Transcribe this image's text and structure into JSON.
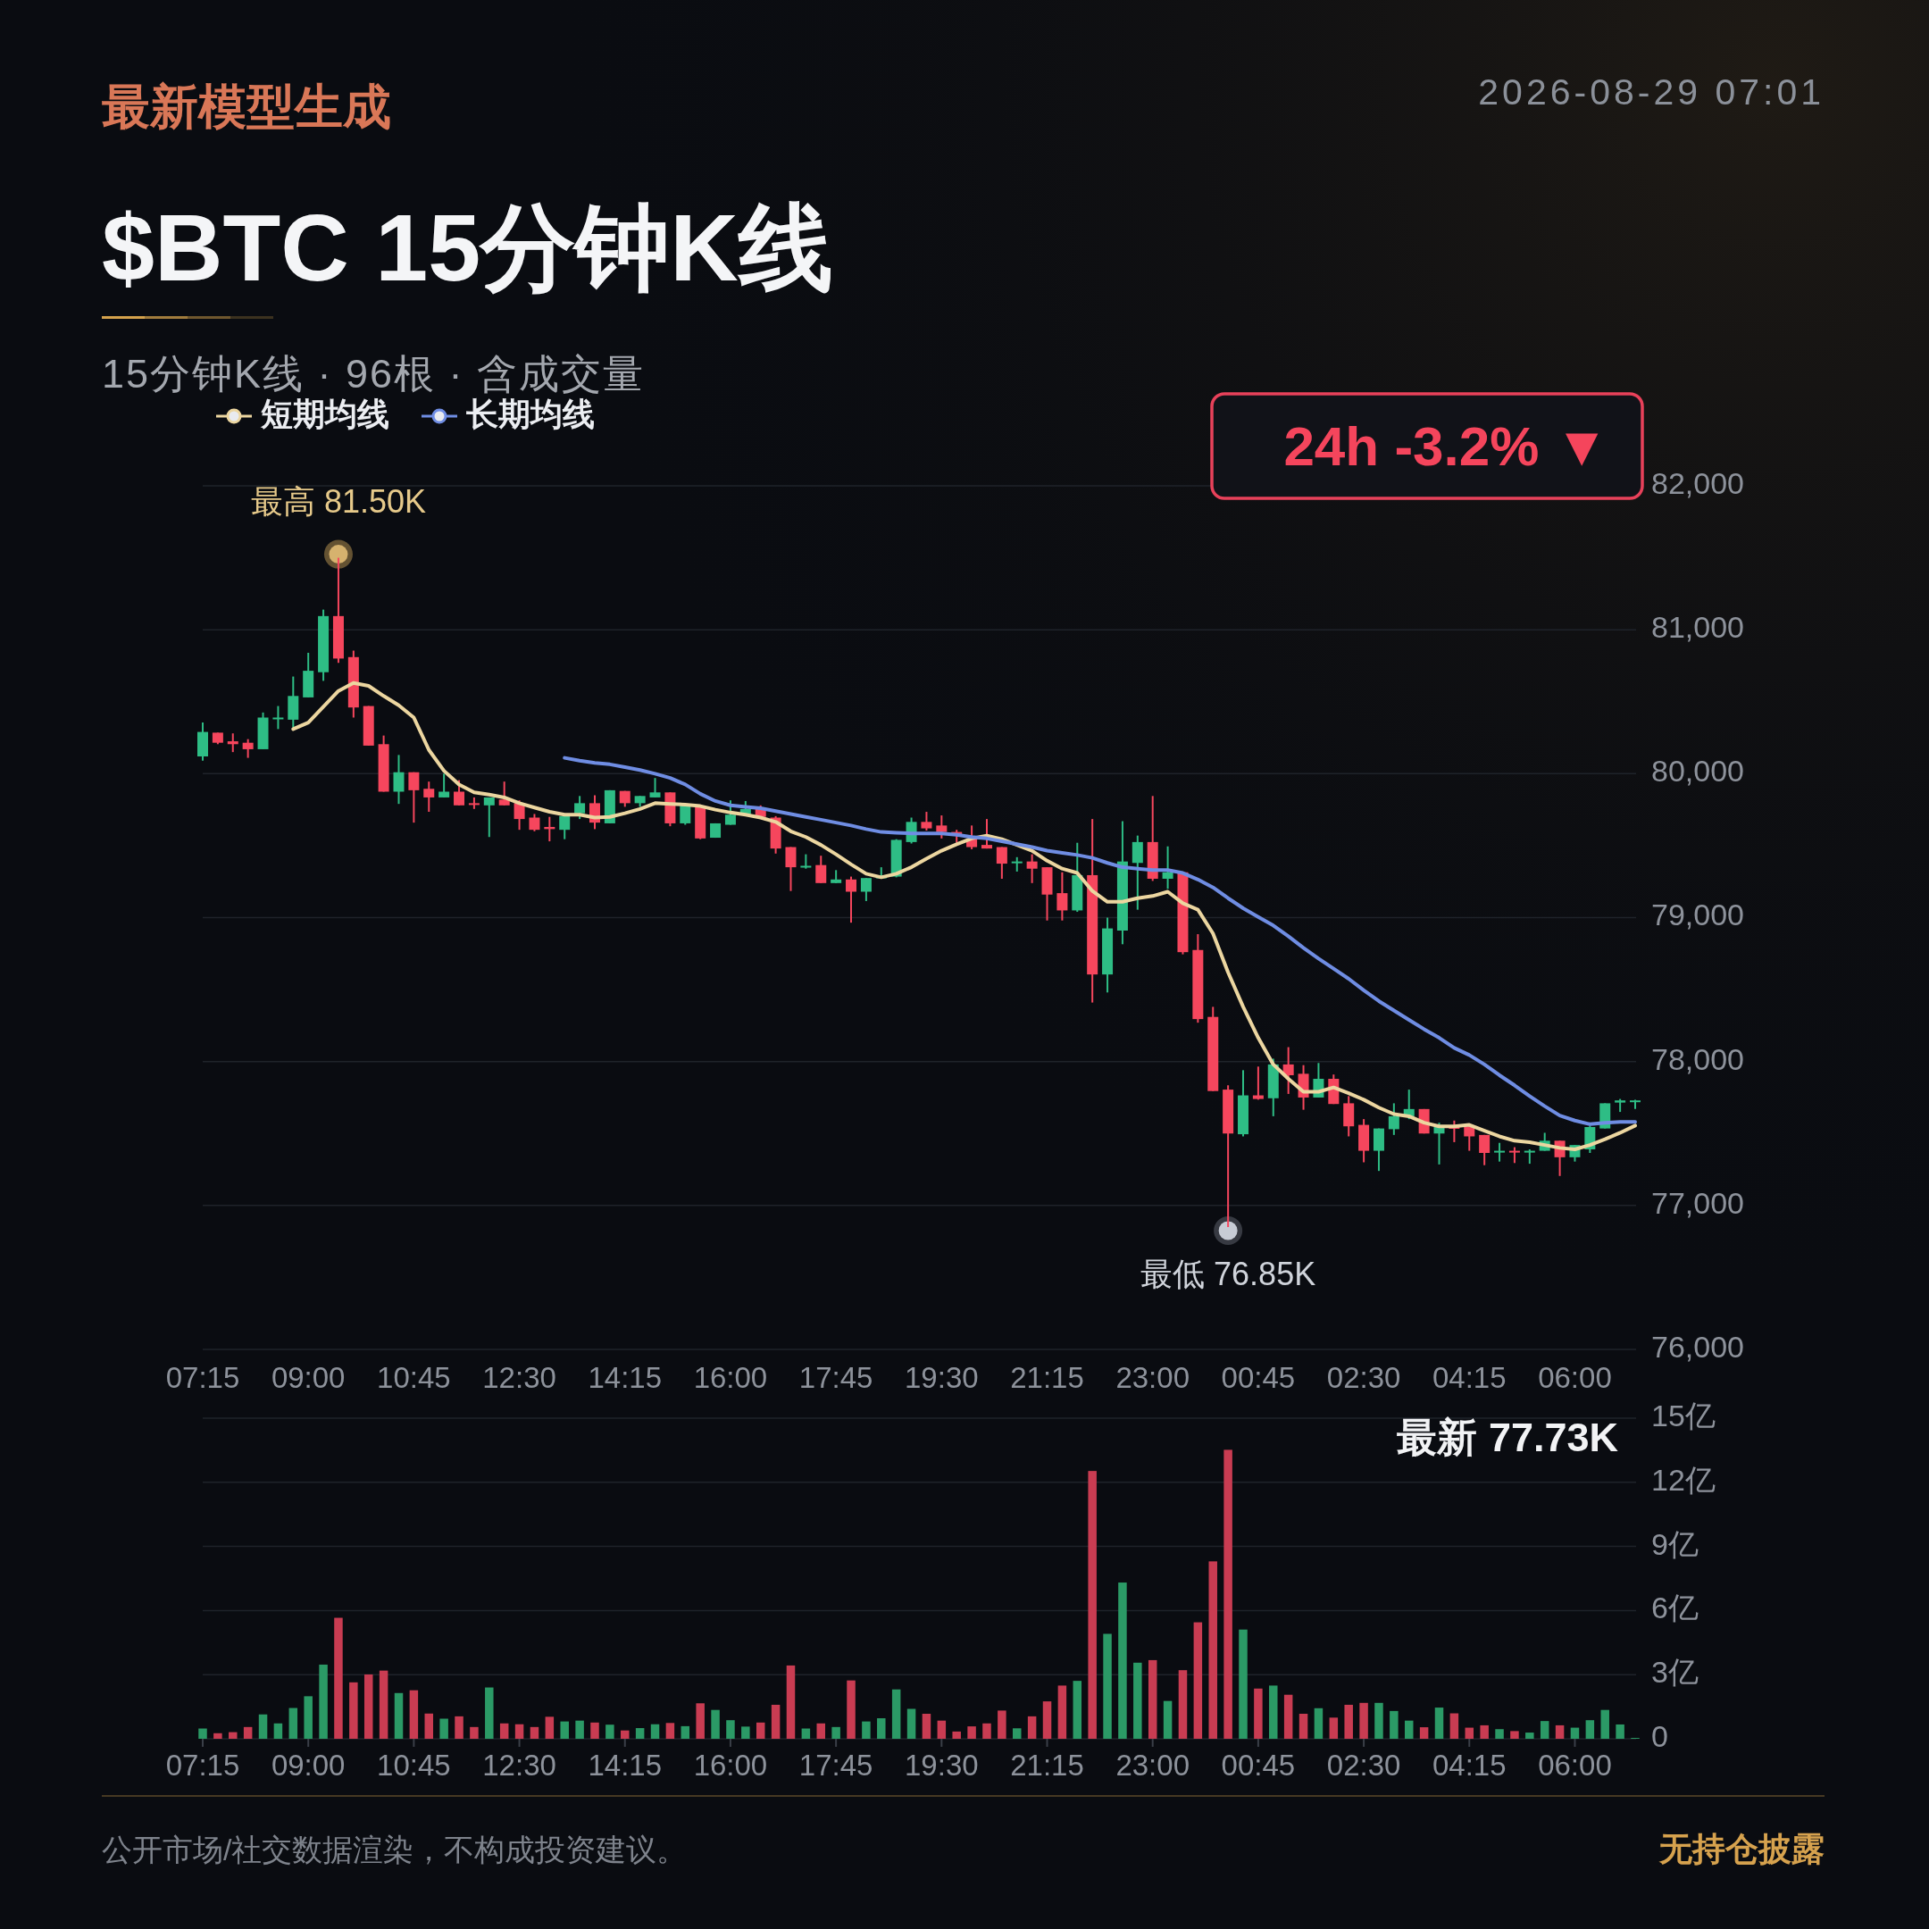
{
  "chart_data": [
    {
      "type": "candlestick",
      "title": "$BTC 15分钟K线",
      "subtitle": "15分钟K线 · 96根 · 含成交量",
      "categories": [
        "07:15",
        null,
        null,
        null,
        null,
        null,
        null,
        "09:00",
        null,
        null,
        null,
        null,
        null,
        null,
        "10:45",
        null,
        null,
        null,
        null,
        null,
        null,
        "12:30",
        null,
        null,
        null,
        null,
        null,
        null,
        "14:15",
        null,
        null,
        null,
        null,
        null,
        null,
        "16:00",
        null,
        null,
        null,
        null,
        null,
        null,
        "17:45",
        null,
        null,
        null,
        null,
        null,
        null,
        "19:30",
        null,
        null,
        null,
        null,
        null,
        null,
        "21:15",
        null,
        null,
        null,
        null,
        null,
        null,
        "23:00",
        null,
        null,
        null,
        null,
        null,
        null,
        "00:45",
        null,
        null,
        null,
        null,
        null,
        null,
        "02:30",
        null,
        null,
        null,
        null,
        null,
        null,
        "04:15",
        null,
        null,
        null,
        null,
        null,
        null,
        "06:00",
        null,
        null,
        null,
        null
      ],
      "ohlc": [
        [
          80120,
          80355,
          80090,
          80290
        ],
        [
          80285,
          80285,
          80205,
          80215
        ],
        [
          80225,
          80280,
          80150,
          80205
        ],
        [
          80215,
          80240,
          80110,
          80170
        ],
        [
          80170,
          80425,
          80170,
          80390
        ],
        [
          80380,
          80470,
          80310,
          80390
        ],
        [
          80375,
          80675,
          80320,
          80540
        ],
        [
          80530,
          80840,
          80530,
          80715
        ],
        [
          80705,
          81140,
          80645,
          81095
        ],
        [
          81095,
          81500,
          80770,
          80800
        ],
        [
          80810,
          80855,
          80390,
          80460
        ],
        [
          80470,
          80470,
          80195,
          80195
        ],
        [
          80205,
          80265,
          79875,
          79875
        ],
        [
          79875,
          80130,
          79790,
          80010
        ],
        [
          80010,
          80010,
          79660,
          79885
        ],
        [
          79895,
          79945,
          79735,
          79835
        ],
        [
          79835,
          80000,
          79835,
          79875
        ],
        [
          79875,
          79955,
          79780,
          79780
        ],
        [
          79795,
          79835,
          79755,
          79785
        ],
        [
          79780,
          79835,
          79560,
          79835
        ],
        [
          79820,
          79945,
          79780,
          79780
        ],
        [
          79795,
          79815,
          79610,
          79685
        ],
        [
          79695,
          79720,
          79600,
          79610
        ],
        [
          79630,
          79700,
          79530,
          79615
        ],
        [
          79610,
          79705,
          79545,
          79705
        ],
        [
          79725,
          79845,
          79685,
          79795
        ],
        [
          79795,
          79850,
          79615,
          79660
        ],
        [
          79655,
          79885,
          79655,
          79885
        ],
        [
          79880,
          79880,
          79770,
          79795
        ],
        [
          79795,
          79845,
          79770,
          79845
        ],
        [
          79835,
          79970,
          79835,
          79870
        ],
        [
          79870,
          79870,
          79635,
          79655
        ],
        [
          79655,
          79780,
          79645,
          79780
        ],
        [
          79770,
          79780,
          79545,
          79550
        ],
        [
          79555,
          79655,
          79555,
          79655
        ],
        [
          79645,
          79815,
          79645,
          79715
        ],
        [
          79720,
          79810,
          79720,
          79755
        ],
        [
          79755,
          79780,
          79700,
          79700
        ],
        [
          79695,
          79705,
          79445,
          79480
        ],
        [
          79490,
          79490,
          79185,
          79350
        ],
        [
          79350,
          79440,
          79340,
          79360
        ],
        [
          79365,
          79430,
          79240,
          79240
        ],
        [
          79240,
          79330,
          79240,
          79265
        ],
        [
          79265,
          79285,
          78965,
          79180
        ],
        [
          79180,
          79275,
          79115,
          79275
        ],
        [
          79280,
          79350,
          79280,
          79285
        ],
        [
          79285,
          79545,
          79280,
          79540
        ],
        [
          79525,
          79695,
          79515,
          79665
        ],
        [
          79665,
          79735,
          79605,
          79620
        ],
        [
          79640,
          79710,
          79550,
          79595
        ],
        [
          79595,
          79610,
          79520,
          79575
        ],
        [
          79550,
          79640,
          79475,
          79490
        ],
        [
          79505,
          79685,
          79480,
          79480
        ],
        [
          79490,
          79490,
          79270,
          79375
        ],
        [
          79380,
          79420,
          79320,
          79390
        ],
        [
          79390,
          79440,
          79240,
          79340
        ],
        [
          79350,
          79350,
          78980,
          79160
        ],
        [
          79170,
          79315,
          78980,
          79050
        ],
        [
          79050,
          79520,
          79040,
          79295
        ],
        [
          79295,
          79685,
          78410,
          78605
        ],
        [
          78605,
          79000,
          78480,
          78925
        ],
        [
          78910,
          79670,
          78815,
          79390
        ],
        [
          79380,
          79570,
          79055,
          79525
        ],
        [
          79525,
          79845,
          79255,
          79270
        ],
        [
          79270,
          79495,
          79200,
          79315
        ],
        [
          79315,
          79320,
          78745,
          78760
        ],
        [
          78775,
          78885,
          78270,
          78295
        ],
        [
          78310,
          78380,
          77795,
          77795
        ],
        [
          77805,
          77835,
          76850,
          77500
        ],
        [
          77495,
          77940,
          77480,
          77765
        ],
        [
          77765,
          77965,
          77735,
          77740
        ],
        [
          77745,
          78020,
          77620,
          77980
        ],
        [
          77980,
          78100,
          77775,
          77905
        ],
        [
          77915,
          77975,
          77665,
          77750
        ],
        [
          77750,
          77990,
          77750,
          77880
        ],
        [
          77880,
          77910,
          77705,
          77705
        ],
        [
          77710,
          77760,
          77480,
          77550
        ],
        [
          77560,
          77600,
          77300,
          77380
        ],
        [
          77380,
          77535,
          77240,
          77535
        ],
        [
          77530,
          77710,
          77490,
          77620
        ],
        [
          77620,
          77805,
          77600,
          77670
        ],
        [
          77670,
          77670,
          77500,
          77500
        ],
        [
          77500,
          77575,
          77285,
          77545
        ],
        [
          77545,
          77590,
          77440,
          77535
        ],
        [
          77550,
          77550,
          77380,
          77480
        ],
        [
          77490,
          77490,
          77280,
          77365
        ],
        [
          77375,
          77435,
          77305,
          77380
        ],
        [
          77380,
          77405,
          77295,
          77370
        ],
        [
          77370,
          77390,
          77290,
          77380
        ],
        [
          77380,
          77505,
          77380,
          77450
        ],
        [
          77450,
          77450,
          77205,
          77335
        ],
        [
          77335,
          77420,
          77305,
          77420
        ],
        [
          77390,
          77555,
          77365,
          77545
        ],
        [
          77535,
          77710,
          77535,
          77710
        ],
        [
          77715,
          77740,
          77650,
          77730
        ],
        [
          77720,
          77735,
          77670,
          77730
        ]
      ],
      "colors": [
        "#2ebd85",
        "#f6465d",
        "#f6465d",
        "#f6465d",
        "#2ebd85",
        "#2ebd85",
        "#2ebd85",
        "#2ebd85",
        "#2ebd85",
        "#f6465d",
        "#f6465d",
        "#f6465d",
        "#f6465d",
        "#2ebd85",
        "#f6465d",
        "#f6465d",
        "#2ebd85",
        "#f6465d",
        "#f6465d",
        "#2ebd85",
        "#f6465d",
        "#f6465d",
        "#f6465d",
        "#f6465d",
        "#2ebd85",
        "#2ebd85",
        "#f6465d",
        "#2ebd85",
        "#f6465d",
        "#2ebd85",
        "#2ebd85",
        "#f6465d",
        "#2ebd85",
        "#f6465d",
        "#2ebd85",
        "#2ebd85",
        "#2ebd85",
        "#f6465d",
        "#f6465d",
        "#f6465d",
        "#2ebd85",
        "#f6465d",
        "#2ebd85",
        "#f6465d",
        "#2ebd85",
        "#2ebd85",
        "#2ebd85",
        "#2ebd85",
        "#f6465d",
        "#f6465d",
        "#f6465d",
        "#f6465d",
        "#f6465d",
        "#f6465d",
        "#2ebd85",
        "#f6465d",
        "#f6465d",
        "#f6465d",
        "#2ebd85",
        "#f6465d",
        "#2ebd85",
        "#2ebd85",
        "#2ebd85",
        "#f6465d",
        "#2ebd85",
        "#f6465d",
        "#f6465d",
        "#f6465d",
        "#f6465d",
        "#2ebd85",
        "#f6465d",
        "#2ebd85",
        "#f6465d",
        "#f6465d",
        "#2ebd85",
        "#f6465d",
        "#f6465d",
        "#f6465d",
        "#2ebd85",
        "#2ebd85",
        "#2ebd85",
        "#f6465d",
        "#2ebd85",
        "#f6465d",
        "#f6465d",
        "#f6465d",
        "#2ebd85",
        "#f6465d",
        "#2ebd85",
        "#2ebd85",
        "#f6465d",
        "#2ebd85",
        "#2ebd85",
        "#2ebd85",
        "#2ebd85",
        "#2ebd85"
      ],
      "series": [
        {
          "name": "短期均线",
          "type": "line",
          "color": "#ecd6a0",
          "values": [
            null,
            null,
            null,
            null,
            null,
            null,
            80310,
            80355,
            80465,
            80575,
            80630,
            80610,
            80540,
            80475,
            80390,
            80165,
            80020,
            79925,
            79870,
            79855,
            79835,
            79795,
            79765,
            79735,
            79715,
            79715,
            79695,
            79700,
            79725,
            79755,
            79795,
            79790,
            79785,
            79775,
            79750,
            79730,
            79715,
            79695,
            79665,
            79600,
            79560,
            79505,
            79440,
            79370,
            79305,
            79280,
            79305,
            79350,
            79410,
            79465,
            79510,
            79550,
            79570,
            79545,
            79505,
            79465,
            79395,
            79340,
            79310,
            79185,
            79110,
            79110,
            79135,
            79150,
            79180,
            79100,
            79055,
            78890,
            78620,
            78380,
            78165,
            77980,
            77880,
            77790,
            77790,
            77820,
            77780,
            77735,
            77680,
            77635,
            77620,
            77575,
            77550,
            77550,
            77560,
            77520,
            77480,
            77450,
            77440,
            77420,
            77400,
            77390,
            77420,
            77460,
            77505,
            77555
          ]
        },
        {
          "name": "长期均线",
          "type": "line",
          "color": "#6f8de3",
          "values": [
            null,
            null,
            null,
            null,
            null,
            null,
            null,
            null,
            null,
            null,
            null,
            null,
            null,
            null,
            null,
            null,
            null,
            null,
            null,
            null,
            null,
            null,
            null,
            null,
            80110,
            80090,
            80075,
            80065,
            80045,
            80025,
            80000,
            79970,
            79925,
            79860,
            79810,
            79780,
            79770,
            79760,
            79740,
            79720,
            79700,
            79680,
            79660,
            79640,
            79615,
            79595,
            79590,
            79585,
            79585,
            79585,
            79575,
            79560,
            79550,
            79530,
            79510,
            79490,
            79465,
            79450,
            79435,
            79415,
            79380,
            79350,
            79340,
            79330,
            79330,
            79310,
            79265,
            79210,
            79135,
            79065,
            79005,
            78945,
            78870,
            78790,
            78715,
            78645,
            78575,
            78495,
            78420,
            78355,
            78290,
            78225,
            78165,
            78095,
            78045,
            77980,
            77905,
            77835,
            77760,
            77690,
            77625,
            77590,
            77565,
            77575,
            77580,
            77580
          ]
        }
      ],
      "ylim": [
        76000,
        82000
      ],
      "yticks": [
        {
          "value": 76000,
          "label": "76,000"
        },
        {
          "value": 77000,
          "label": "77,000"
        },
        {
          "value": 78000,
          "label": "78,000"
        },
        {
          "value": 79000,
          "label": "79,000"
        },
        {
          "value": 80000,
          "label": "80,000"
        },
        {
          "value": 81000,
          "label": "81,000"
        },
        {
          "value": 82000,
          "label": "82,000"
        }
      ],
      "grid": "y",
      "legend": "top left",
      "annotations": [
        "最新模型生成",
        "2026-08-29 07:01",
        "24h -3.2% ▼",
        {
          "text": "最高 81.50K",
          "y": 81500
        },
        {
          "text": "最低 76.85K",
          "y": 76850
        }
      ]
    },
    {
      "type": "bar",
      "categories": [
        "07:15",
        null,
        null,
        null,
        null,
        null,
        null,
        "09:00",
        null,
        null,
        null,
        null,
        null,
        null,
        "10:45",
        null,
        null,
        null,
        null,
        null,
        null,
        "12:30",
        null,
        null,
        null,
        null,
        null,
        null,
        "14:15",
        null,
        null,
        null,
        null,
        null,
        null,
        "16:00",
        null,
        null,
        null,
        null,
        null,
        null,
        "17:45",
        null,
        null,
        null,
        null,
        null,
        null,
        "19:30",
        null,
        null,
        null,
        null,
        null,
        null,
        "21:15",
        null,
        null,
        null,
        null,
        null,
        null,
        "23:00",
        null,
        null,
        null,
        null,
        null,
        null,
        "00:45",
        null,
        null,
        null,
        null,
        null,
        null,
        "02:30",
        null,
        null,
        null,
        null,
        null,
        null,
        "04:15",
        null,
        null,
        null,
        null,
        null,
        null,
        "06:00",
        null,
        null,
        null,
        null
      ],
      "values": [
        0.48,
        0.26,
        0.31,
        0.55,
        1.14,
        0.72,
        1.44,
        1.99,
        3.47,
        5.66,
        2.64,
        3.01,
        3.19,
        2.14,
        2.27,
        1.18,
        0.94,
        1.05,
        0.55,
        2.4,
        0.72,
        0.68,
        0.55,
        1.03,
        0.81,
        0.85,
        0.76,
        0.66,
        0.39,
        0.5,
        0.68,
        0.74,
        0.59,
        1.66,
        1.35,
        0.87,
        0.57,
        0.76,
        1.59,
        3.43,
        0.48,
        0.72,
        0.55,
        2.73,
        0.81,
        0.96,
        2.31,
        1.4,
        1.17,
        0.85,
        0.34,
        0.58,
        0.72,
        1.32,
        0.49,
        1.05,
        1.75,
        2.49,
        2.71,
        12.53,
        4.91,
        7.31,
        3.56,
        3.68,
        1.77,
        3.21,
        5.45,
        8.3,
        13.52,
        5.11,
        2.35,
        2.49,
        2.06,
        1.17,
        1.43,
        0.99,
        1.59,
        1.68,
        1.68,
        1.3,
        0.85,
        0.54,
        1.46,
        1.19,
        0.52,
        0.63,
        0.45,
        0.36,
        0.29,
        0.83,
        0.63,
        0.52,
        0.87,
        1.35,
        0.67,
        0.04
      ],
      "colors": [
        "#2b9a66",
        "#c93c52",
        "#c93c52",
        "#c93c52",
        "#2b9a66",
        "#2b9a66",
        "#2b9a66",
        "#2b9a66",
        "#2b9a66",
        "#c93c52",
        "#c93c52",
        "#c93c52",
        "#c93c52",
        "#2b9a66",
        "#c93c52",
        "#c93c52",
        "#2b9a66",
        "#c93c52",
        "#c93c52",
        "#2b9a66",
        "#c93c52",
        "#c93c52",
        "#c93c52",
        "#c93c52",
        "#2b9a66",
        "#2b9a66",
        "#c93c52",
        "#2b9a66",
        "#c93c52",
        "#2b9a66",
        "#2b9a66",
        "#c93c52",
        "#2b9a66",
        "#c93c52",
        "#2b9a66",
        "#2b9a66",
        "#2b9a66",
        "#c93c52",
        "#c93c52",
        "#c93c52",
        "#2b9a66",
        "#c93c52",
        "#2b9a66",
        "#c93c52",
        "#2b9a66",
        "#2b9a66",
        "#2b9a66",
        "#2b9a66",
        "#c93c52",
        "#c93c52",
        "#c93c52",
        "#c93c52",
        "#c93c52",
        "#c93c52",
        "#2b9a66",
        "#c93c52",
        "#c93c52",
        "#c93c52",
        "#2b9a66",
        "#c93c52",
        "#2b9a66",
        "#2b9a66",
        "#2b9a66",
        "#c93c52",
        "#2b9a66",
        "#c93c52",
        "#c93c52",
        "#c93c52",
        "#c93c52",
        "#2b9a66",
        "#c93c52",
        "#2b9a66",
        "#c93c52",
        "#c93c52",
        "#2b9a66",
        "#c93c52",
        "#c93c52",
        "#c93c52",
        "#2b9a66",
        "#2b9a66",
        "#2b9a66",
        "#c93c52",
        "#2b9a66",
        "#c93c52",
        "#c93c52",
        "#c93c52",
        "#2b9a66",
        "#c93c52",
        "#2b9a66",
        "#2b9a66",
        "#c93c52",
        "#2b9a66",
        "#2b9a66",
        "#2b9a66",
        "#2b9a66",
        "#2b9a66"
      ],
      "ylim": [
        0,
        15
      ],
      "yticks": [
        0,
        {
          "value": 3,
          "label": "3亿"
        },
        {
          "value": 6,
          "label": "6亿"
        },
        {
          "value": 9,
          "label": "9亿"
        },
        {
          "value": 12,
          "label": "12亿"
        },
        {
          "value": 15,
          "label": "15亿"
        }
      ],
      "grid": "y",
      "annotations": [
        "最新 77.73K",
        "公开市场/社交数据渲染，不构成投资建议。",
        "无持仓披露"
      ]
    }
  ]
}
